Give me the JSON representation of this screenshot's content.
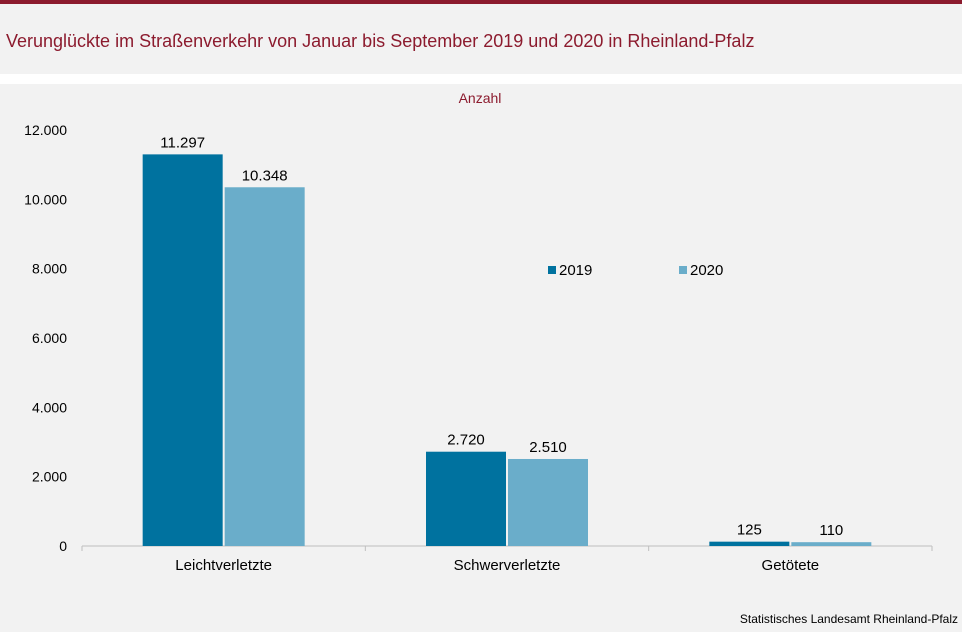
{
  "title": "Verunglückte im Straßenverkehr von Januar bis September 2019 und 2020 in Rheinland-Pfalz",
  "source": "Statistisches Landesamt  Rheinland-Pfalz",
  "colors": {
    "accent": "#8c1b2e",
    "series_2019": "#00729f",
    "series_2020": "#6aadca",
    "background": "#f2f2f2"
  },
  "chart_data": {
    "type": "bar",
    "unit_label": "Anzahl",
    "categories": [
      "Leichtverletzte",
      "Schwerverletzte",
      "Getötete"
    ],
    "series": [
      {
        "name": "2019",
        "values": [
          11297,
          2720,
          125
        ],
        "labels": [
          "11.297",
          "2.720",
          "125"
        ]
      },
      {
        "name": "2020",
        "values": [
          10348,
          2510,
          110
        ],
        "labels": [
          "10.348",
          "2.510",
          "110"
        ]
      }
    ],
    "y_ticks": [
      0,
      2000,
      4000,
      6000,
      8000,
      10000,
      12000
    ],
    "y_tick_labels": [
      "0",
      "2.000",
      "4.000",
      "6.000",
      "8.000",
      "10.000",
      "12.000"
    ],
    "ylim": [
      0,
      12000
    ],
    "grid": false,
    "legend_position": "center-right"
  }
}
